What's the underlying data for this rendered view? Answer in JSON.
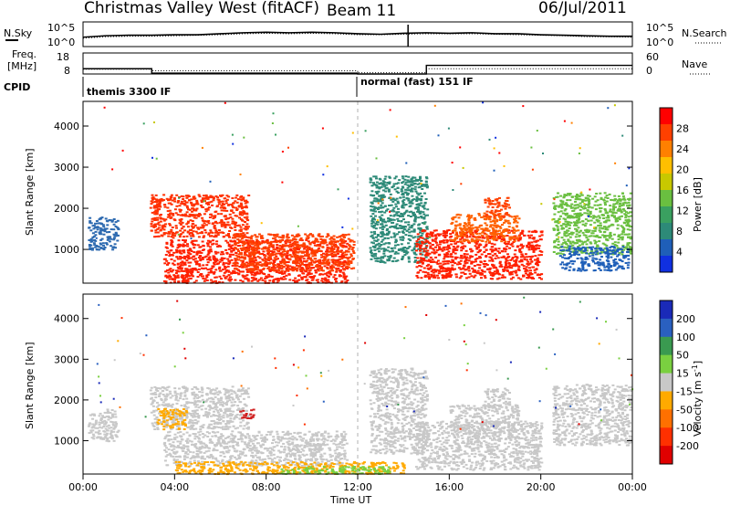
{
  "header": {
    "station": "Christmas Valley West (fitACF)",
    "beam": "Beam 11",
    "date": "06/Jul/2011"
  },
  "side_labels": {
    "nsky": "N.Sky",
    "nsearch": "N.Search",
    "freq_line1": "Freq.",
    "freq_line2": "[MHz]",
    "nave": "Nave",
    "cpid": "CPID"
  },
  "chart_data": [
    {
      "type": "line",
      "name": "noise",
      "ylabels_left": [
        "10^5",
        "10^0"
      ],
      "ylabels_right": [
        "10^5",
        "10^0"
      ],
      "x": [
        0,
        1,
        2,
        3,
        4,
        5,
        6,
        7,
        8,
        9,
        10,
        11,
        12,
        13,
        14,
        15,
        16,
        17,
        18,
        19,
        20,
        21,
        22,
        23,
        24
      ],
      "series": [
        {
          "values": [
            1.9,
            2.2,
            2.3,
            2.3,
            2.4,
            2.4,
            2.6,
            2.8,
            2.9,
            2.8,
            2.9,
            2.8,
            2.6,
            2.5,
            2.7,
            2.8,
            2.7,
            2.8,
            2.6,
            2.6,
            2.4,
            2.3,
            2.2,
            2.1,
            2.1
          ]
        },
        {
          "values": [
            1.7,
            2.0,
            2.1,
            2.1,
            2.2,
            2.3,
            2.4,
            2.6,
            2.7,
            2.6,
            2.7,
            2.6,
            2.4,
            2.4,
            2.5,
            2.6,
            2.6,
            2.6,
            2.5,
            2.4,
            2.3,
            2.2,
            2.0,
            2.0,
            1.9
          ]
        }
      ]
    },
    {
      "type": "line",
      "name": "frequency",
      "ylabels_left": [
        "18",
        "8"
      ],
      "ylabels_right": [
        "60",
        "0"
      ],
      "freq_steps": [
        [
          0,
          3,
          10.5
        ],
        [
          3,
          12,
          8.4
        ],
        [
          12,
          15,
          8.0
        ],
        [
          15,
          24,
          12.1
        ]
      ],
      "nave_steps": [
        [
          0,
          3,
          10.3
        ],
        [
          3,
          12,
          9.5
        ],
        [
          12,
          15,
          8.6
        ],
        [
          15,
          24,
          10.5
        ]
      ]
    },
    {
      "type": "table",
      "name": "cpid",
      "segments": [
        {
          "start": 0,
          "label": "themis 3300 IF"
        },
        {
          "start": 12,
          "label": "normal (fast) 151 IF"
        }
      ]
    },
    {
      "type": "heatmap",
      "name": "power",
      "ylabel": "Slant Range [km]",
      "yticks": [
        1000,
        2000,
        3000,
        4000
      ],
      "ylim": [
        180,
        4600
      ],
      "xlim": [
        0,
        24
      ],
      "colorbar": {
        "label": "Power [dB]",
        "ticks": [
          "28",
          "24",
          "20",
          "16",
          "12",
          "8",
          "4"
        ],
        "colors": [
          "#ff0000",
          "#ff4000",
          "#ff8000",
          "#ffbf00",
          "#c8c800",
          "#6abf40",
          "#3aa060",
          "#2d8a78",
          "#1f5fb8",
          "#1030e0"
        ]
      },
      "regions": [
        {
          "t0": 0.2,
          "t1": 1.5,
          "r0": 1000,
          "r1": 1800,
          "c": "#2d6ab0"
        },
        {
          "t0": 2.9,
          "t1": 7.2,
          "r0": 1300,
          "r1": 2350,
          "c": "#ff3000"
        },
        {
          "t0": 3.5,
          "t1": 11.5,
          "r0": 200,
          "r1": 1250,
          "c": "#ff2000"
        },
        {
          "t0": 6.5,
          "t1": 11.8,
          "r0": 500,
          "r1": 1400,
          "c": "#ff4000"
        },
        {
          "t0": 12.5,
          "t1": 15.0,
          "r0": 700,
          "r1": 2800,
          "c": "#2d8a78"
        },
        {
          "t0": 14.5,
          "t1": 20.0,
          "r0": 300,
          "r1": 1500,
          "c": "#ff2000"
        },
        {
          "t0": 16.0,
          "t1": 19.0,
          "r0": 1200,
          "r1": 1900,
          "c": "#ff6000"
        },
        {
          "t0": 17.5,
          "t1": 18.6,
          "r0": 1800,
          "r1": 2300,
          "c": "#ff4000"
        },
        {
          "t0": 20.5,
          "t1": 23.9,
          "r0": 900,
          "r1": 2400,
          "c": "#6abf40"
        },
        {
          "t0": 20.8,
          "t1": 23.8,
          "r0": 500,
          "r1": 1100,
          "c": "#1f5fb8"
        }
      ]
    },
    {
      "type": "heatmap",
      "name": "velocity",
      "ylabel": "Slant Range [km]",
      "yticks": [
        1000,
        2000,
        3000,
        4000
      ],
      "ylim": [
        180,
        4600
      ],
      "xlim": [
        0,
        24
      ],
      "colorbar": {
        "label": "Velocity [m s^-1]",
        "ticks": [
          "200",
          "100",
          "50",
          "15",
          "-15",
          "-50",
          "-100",
          "-200"
        ],
        "colors": [
          "#1a2ab8",
          "#2a60c0",
          "#3a9a50",
          "#7ad040",
          "#c8c8c8",
          "#ffaa00",
          "#ff7000",
          "#ff3000",
          "#e00000"
        ]
      },
      "regions": [
        {
          "t0": 0.2,
          "t1": 1.5,
          "r0": 1000,
          "r1": 1800,
          "c": "#c8c8c8"
        },
        {
          "t0": 2.9,
          "t1": 7.2,
          "r0": 1300,
          "r1": 2350,
          "c": "#c8c8c8"
        },
        {
          "t0": 3.5,
          "t1": 11.5,
          "r0": 400,
          "r1": 1250,
          "c": "#c8c8c8"
        },
        {
          "t0": 3.2,
          "t1": 4.5,
          "r0": 1300,
          "r1": 1800,
          "c": "#ffaa00"
        },
        {
          "t0": 6.8,
          "t1": 7.4,
          "r0": 1550,
          "r1": 1800,
          "c": "#d02020"
        },
        {
          "t0": 4.0,
          "t1": 14.0,
          "r0": 200,
          "r1": 500,
          "c": "#ffaa00"
        },
        {
          "t0": 8.5,
          "t1": 13.5,
          "r0": 200,
          "r1": 380,
          "c": "#7ad040"
        },
        {
          "t0": 12.5,
          "t1": 15.0,
          "r0": 700,
          "r1": 2800,
          "c": "#c8c8c8"
        },
        {
          "t0": 14.5,
          "t1": 20.0,
          "r0": 300,
          "r1": 1500,
          "c": "#c8c8c8"
        },
        {
          "t0": 16.0,
          "t1": 19.0,
          "r0": 1200,
          "r1": 1900,
          "c": "#c8c8c8"
        },
        {
          "t0": 17.5,
          "t1": 18.6,
          "r0": 1800,
          "r1": 2300,
          "c": "#c8c8c8"
        },
        {
          "t0": 20.5,
          "t1": 23.9,
          "r0": 900,
          "r1": 2400,
          "c": "#c8c8c8"
        }
      ]
    }
  ],
  "xaxis": {
    "label": "Time UT",
    "ticks": [
      "00:00",
      "04:00",
      "08:00",
      "12:00",
      "16:00",
      "20:00",
      "00:00"
    ]
  }
}
